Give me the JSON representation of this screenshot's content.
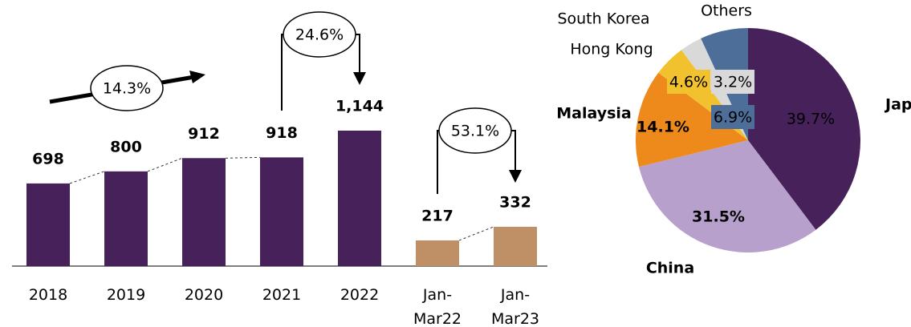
{
  "chart_data": [
    {
      "type": "bar",
      "categories": [
        "2018",
        "2019",
        "2020",
        "2021",
        "2022",
        "Jan-\nMar22",
        "Jan-\nMar23"
      ],
      "values": [
        698,
        800,
        912,
        918,
        1144,
        217,
        332
      ],
      "value_labels": [
        "698",
        "800",
        "912",
        "918",
        "1,144",
        "217",
        "332"
      ],
      "colors": [
        "#47215a",
        "#47215a",
        "#47215a",
        "#47215a",
        "#47215a",
        "#bf8f65",
        "#bf8f65"
      ],
      "annotations": [
        "14.3%",
        "24.6%",
        "53.1%"
      ]
    },
    {
      "type": "pie",
      "categories": [
        "Japan",
        "China",
        "Malaysia",
        "Hong Kong",
        "South Korea",
        "Others"
      ],
      "values": [
        39.7,
        31.5,
        14.1,
        4.6,
        3.2,
        6.9
      ],
      "value_labels": [
        "39.7%",
        "31.5%",
        "14.1%",
        "4.6%",
        "3.2%",
        "6.9%"
      ],
      "colors": [
        "#47215a",
        "#b8a0cc",
        "#ee8a1c",
        "#f2c22e",
        "#d9d9d9",
        "#4e6e9a"
      ]
    }
  ]
}
